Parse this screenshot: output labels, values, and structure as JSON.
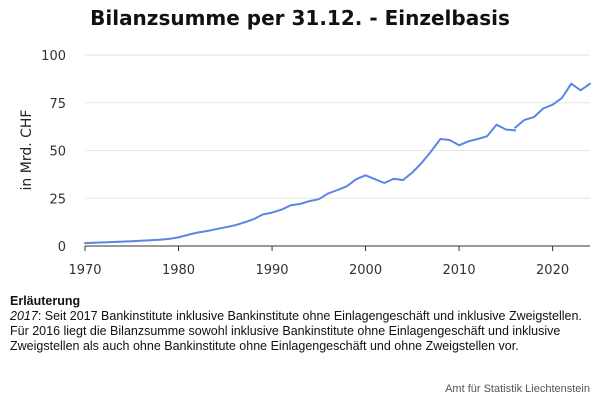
{
  "title": "Bilanzsumme per 31.12. - Einzelbasis",
  "chart_data": {
    "type": "line",
    "title": "Bilanzsumme per 31.12. - Einzelbasis",
    "ylabel": "in Mrd. CHF",
    "xlabel": "",
    "xlim": [
      1970,
      2024
    ],
    "ylim": [
      0,
      100
    ],
    "x_ticks": [
      1970,
      1980,
      1990,
      2000,
      2010,
      2020
    ],
    "y_ticks": [
      0,
      25,
      50,
      75,
      100
    ],
    "grid": "horizontal",
    "line_color": "#5b86e5",
    "series": [
      {
        "segment": "until-2016",
        "points": [
          [
            1970,
            1.5
          ],
          [
            1971,
            1.7
          ],
          [
            1972,
            1.9
          ],
          [
            1973,
            2.1
          ],
          [
            1974,
            2.3
          ],
          [
            1975,
            2.5
          ],
          [
            1976,
            2.7
          ],
          [
            1977,
            3.0
          ],
          [
            1978,
            3.3
          ],
          [
            1979,
            3.7
          ],
          [
            1980,
            4.5
          ],
          [
            1981,
            5.8
          ],
          [
            1982,
            7.0
          ],
          [
            1983,
            7.8
          ],
          [
            1984,
            8.8
          ],
          [
            1985,
            9.8
          ],
          [
            1986,
            10.8
          ],
          [
            1987,
            12.3
          ],
          [
            1988,
            14.0
          ],
          [
            1989,
            16.5
          ],
          [
            1990,
            17.5
          ],
          [
            1991,
            19.0
          ],
          [
            1992,
            21.3
          ],
          [
            1993,
            22.0
          ],
          [
            1994,
            23.5
          ],
          [
            1995,
            24.5
          ],
          [
            1996,
            27.5
          ],
          [
            1997,
            29.3
          ],
          [
            1998,
            31.3
          ],
          [
            1999,
            35.0
          ],
          [
            2000,
            37.0
          ],
          [
            2001,
            35.0
          ],
          [
            2002,
            33.0
          ],
          [
            2003,
            35.2
          ],
          [
            2004,
            34.5
          ],
          [
            2005,
            38.5
          ],
          [
            2006,
            43.5
          ],
          [
            2007,
            49.5
          ],
          [
            2008,
            56.0
          ],
          [
            2009,
            55.5
          ],
          [
            2010,
            52.7
          ],
          [
            2011,
            54.8
          ],
          [
            2012,
            56.0
          ],
          [
            2013,
            57.5
          ],
          [
            2014,
            63.5
          ],
          [
            2015,
            61.0
          ],
          [
            2016,
            60.5
          ]
        ]
      },
      {
        "segment": "from-2016",
        "points": [
          [
            2016,
            62.0
          ],
          [
            2017,
            66.0
          ],
          [
            2018,
            67.5
          ],
          [
            2019,
            72.0
          ],
          [
            2020,
            74.0
          ],
          [
            2021,
            77.5
          ],
          [
            2022,
            85.0
          ],
          [
            2023,
            81.5
          ],
          [
            2024,
            85.0
          ]
        ]
      }
    ]
  },
  "note": {
    "heading": "Erläuterung",
    "year": "2017",
    "text": ": Seit 2017 Bankinstitute inklusive Bankinstitute ohne Einlagengeschäft und inklusive Zweigstellen. Für 2016 liegt die Bilanzsumme sowohl inklusive Bankinstitute ohne Einlagengeschäft und inklusive Zweigstellen als auch ohne Bankinstitute ohne Einlagengeschäft und ohne Zweigstellen vor."
  },
  "source": "Amt für Statistik Liechtenstein"
}
